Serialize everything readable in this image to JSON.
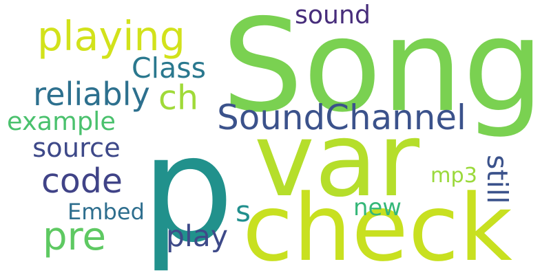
{
  "words": [
    {
      "id": "song",
      "text": "Song",
      "color": "#7ad151"
    },
    {
      "id": "p",
      "text": "p",
      "color": "#21918c"
    },
    {
      "id": "var",
      "text": "var",
      "color": "#b5de2b"
    },
    {
      "id": "check",
      "text": "check",
      "color": "#c8e020"
    },
    {
      "id": "soundchannel",
      "text": "SoundChannel",
      "color": "#3b528b"
    },
    {
      "id": "playing",
      "text": "playing",
      "color": "#d2e21b"
    },
    {
      "id": "code",
      "text": "code",
      "color": "#404387"
    },
    {
      "id": "pre",
      "text": "pre",
      "color": "#5ec962"
    },
    {
      "id": "ch",
      "text": "ch",
      "color": "#a0da39"
    },
    {
      "id": "s",
      "text": "s",
      "color": "#218f8d"
    },
    {
      "id": "sound",
      "text": "sound",
      "color": "#472d7b"
    },
    {
      "id": "class",
      "text": "Class",
      "color": "#2a788e"
    },
    {
      "id": "reliably",
      "text": "reliably",
      "color": "#2d708e"
    },
    {
      "id": "example",
      "text": "example",
      "color": "#4ac16d"
    },
    {
      "id": "source",
      "text": "source",
      "color": "#3e4989"
    },
    {
      "id": "mp3",
      "text": "mp3",
      "color": "#9bd93c"
    },
    {
      "id": "embed",
      "text": "Embed",
      "color": "#2e6e8e"
    },
    {
      "id": "new",
      "text": "new",
      "color": "#35b779"
    },
    {
      "id": "play",
      "text": "play",
      "color": "#3e4a89"
    },
    {
      "id": "still",
      "text": "still",
      "color": "#3b528b"
    }
  ]
}
